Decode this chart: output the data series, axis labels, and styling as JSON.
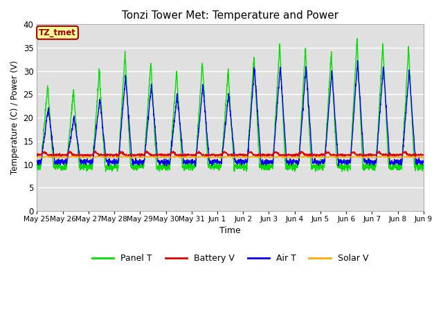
{
  "title": "Tonzi Tower Met: Temperature and Power",
  "xlabel": "Time",
  "ylabel": "Temperature (C) / Power (V)",
  "ylim": [
    0,
    40
  ],
  "yticks": [
    0,
    5,
    10,
    15,
    20,
    25,
    30,
    35,
    40
  ],
  "bg_color": "#e0e0e0",
  "fig_color": "#ffffff",
  "label_box_text": "TZ_tmet",
  "label_box_facecolor": "#ffff99",
  "label_box_edgecolor": "#990000",
  "label_box_textcolor": "#990000",
  "legend_labels": [
    "Panel T",
    "Battery V",
    "Air T",
    "Solar V"
  ],
  "legend_colors": [
    "#00dd00",
    "#dd0000",
    "#0000ee",
    "#ffaa00"
  ],
  "n_days": 15,
  "points_per_day": 144,
  "panel_night": 9.5,
  "panel_peak_base": 20,
  "panel_peak_growth": 1.8,
  "air_night": 10.5,
  "air_peak_base": 14,
  "air_peak_growth": 1.3,
  "battery_base": 12.0,
  "solar_base": 11.5,
  "tick_labels": [
    "May 25",
    "May 26",
    "May 27",
    "May 28",
    "May 29",
    "May 30",
    "May 31",
    "Jun 1",
    "Jun 2",
    "Jun 3",
    "Jun 4",
    "Jun 5",
    "Jun 6",
    "Jun 7",
    "Jun 8",
    "Jun 9"
  ],
  "tick_positions": [
    0,
    1,
    2,
    3,
    4,
    5,
    6,
    7,
    8,
    9,
    10,
    11,
    12,
    13,
    14,
    15
  ]
}
